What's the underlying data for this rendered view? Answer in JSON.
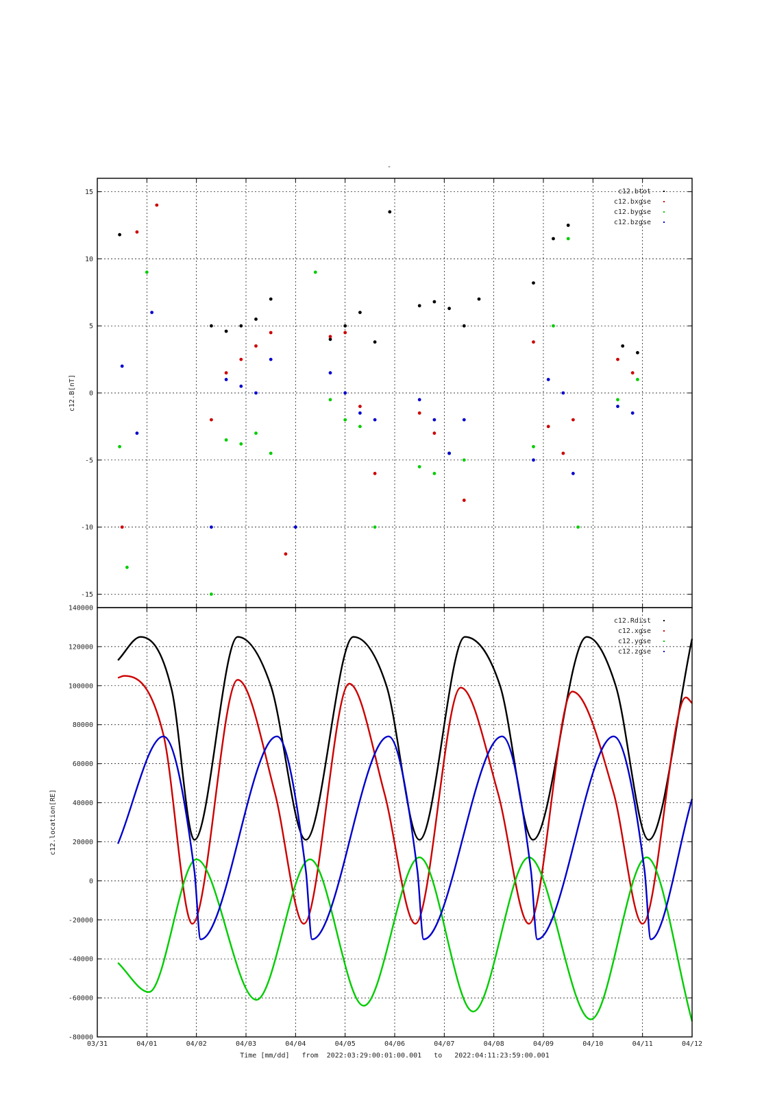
{
  "figure_title": "-",
  "footer": {
    "time_label": "Time [mm/dd]",
    "from_label": "from",
    "from_value": "2022:03:29:00:01:00.001",
    "to_label": "to",
    "to_value": "2022:04:11:23:59:00.001"
  },
  "chart_data": [
    {
      "type": "scatter",
      "ylabel": "c12.B[nT]",
      "xlabel": "",
      "ylim": [
        -16,
        16
      ],
      "yticks": [
        15,
        10,
        5,
        0,
        -5,
        -10,
        -15
      ],
      "x_tick_labels": [],
      "grid": true,
      "legend_position": "top-right",
      "series": [
        {
          "name": "c12.btot",
          "color": "#000000",
          "points": [
            [
              0.45,
              11.8
            ],
            [
              2.3,
              5.0
            ],
            [
              2.6,
              4.6
            ],
            [
              2.9,
              5.0
            ],
            [
              3.2,
              5.5
            ],
            [
              3.5,
              7.0
            ],
            [
              4.7,
              4.0
            ],
            [
              5.0,
              5.0
            ],
            [
              5.3,
              6.0
            ],
            [
              5.6,
              3.8
            ],
            [
              5.9,
              13.5
            ],
            [
              6.5,
              6.5
            ],
            [
              6.8,
              6.8
            ],
            [
              7.1,
              6.3
            ],
            [
              7.4,
              5.0
            ],
            [
              7.7,
              7.0
            ],
            [
              8.8,
              8.2
            ],
            [
              9.2,
              11.5
            ],
            [
              9.5,
              12.5
            ],
            [
              10.6,
              3.5
            ],
            [
              10.9,
              3.0
            ]
          ]
        },
        {
          "name": "c12.bxgse",
          "color": "#cc0000",
          "points": [
            [
              0.5,
              -10.0
            ],
            [
              0.8,
              12.0
            ],
            [
              1.2,
              14.0
            ],
            [
              2.3,
              -2.0
            ],
            [
              2.6,
              1.5
            ],
            [
              2.9,
              2.5
            ],
            [
              3.2,
              3.5
            ],
            [
              3.5,
              4.5
            ],
            [
              3.8,
              -12.0
            ],
            [
              4.7,
              4.2
            ],
            [
              5.0,
              4.5
            ],
            [
              5.3,
              -1.0
            ],
            [
              5.6,
              -6.0
            ],
            [
              6.5,
              -1.5
            ],
            [
              6.8,
              -3.0
            ],
            [
              7.1,
              -4.5
            ],
            [
              7.4,
              -8.0
            ],
            [
              8.8,
              3.8
            ],
            [
              9.1,
              -2.5
            ],
            [
              9.4,
              -4.5
            ],
            [
              9.6,
              -2.0
            ],
            [
              10.5,
              2.5
            ],
            [
              10.8,
              1.5
            ]
          ]
        },
        {
          "name": "c12.bygse",
          "color": "#00cc00",
          "points": [
            [
              0.45,
              -4.0
            ],
            [
              0.6,
              -13.0
            ],
            [
              1.0,
              9.0
            ],
            [
              2.3,
              -15.0
            ],
            [
              2.6,
              -3.5
            ],
            [
              2.9,
              -3.8
            ],
            [
              3.2,
              -3.0
            ],
            [
              3.5,
              -4.5
            ],
            [
              4.4,
              9.0
            ],
            [
              4.7,
              -0.5
            ],
            [
              5.0,
              -2.0
            ],
            [
              5.3,
              -2.5
            ],
            [
              5.6,
              -10.0
            ],
            [
              6.5,
              -5.5
            ],
            [
              6.8,
              -6.0
            ],
            [
              7.1,
              -4.5
            ],
            [
              7.4,
              -5.0
            ],
            [
              8.8,
              -4.0
            ],
            [
              9.2,
              5.0
            ],
            [
              9.5,
              11.5
            ],
            [
              9.7,
              -10.0
            ],
            [
              10.5,
              -0.5
            ],
            [
              10.9,
              1.0
            ]
          ]
        },
        {
          "name": "c12.bzgse",
          "color": "#0000cc",
          "points": [
            [
              0.5,
              2.0
            ],
            [
              0.8,
              -3.0
            ],
            [
              1.1,
              6.0
            ],
            [
              2.3,
              -10.0
            ],
            [
              2.6,
              1.0
            ],
            [
              2.9,
              0.5
            ],
            [
              3.2,
              0.0
            ],
            [
              3.5,
              2.5
            ],
            [
              4.0,
              -10.0
            ],
            [
              4.7,
              1.5
            ],
            [
              5.0,
              0.0
            ],
            [
              5.3,
              -1.5
            ],
            [
              5.6,
              -2.0
            ],
            [
              6.5,
              -0.5
            ],
            [
              6.8,
              -2.0
            ],
            [
              7.1,
              -4.5
            ],
            [
              7.4,
              -2.0
            ],
            [
              8.8,
              -5.0
            ],
            [
              9.1,
              1.0
            ],
            [
              9.4,
              0.0
            ],
            [
              9.6,
              -6.0
            ],
            [
              10.5,
              -1.0
            ],
            [
              10.8,
              -1.5
            ]
          ]
        }
      ]
    },
    {
      "type": "line",
      "ylabel": "c12.location[RE]",
      "xlabel": "Time [mm/dd]",
      "xlim": [
        "03/31",
        "04/12"
      ],
      "ylim": [
        -80000,
        140000
      ],
      "yticks": [
        140000,
        120000,
        100000,
        80000,
        60000,
        40000,
        20000,
        0,
        -20000,
        -40000,
        -60000,
        -80000
      ],
      "x_tick_labels": [
        "03/31",
        "04/01",
        "04/02",
        "04/03",
        "04/04",
        "04/05",
        "04/06",
        "04/07",
        "04/08",
        "04/09",
        "04/10",
        "04/11",
        "04/12"
      ],
      "grid": true,
      "legend_position": "top-right",
      "series": [
        {
          "name": "c12.Rdist",
          "color": "#000000",
          "x": [
            "03/31 10:00",
            "03/31 21:00",
            "04/01 12:00",
            "04/01 23:00",
            "04/02 20:00",
            "04/03 12:00",
            "04/04 05:00",
            "04/05 04:00",
            "04/05 20:00",
            "04/06 12:00",
            "04/07 10:00",
            "04/08 03:00",
            "04/08 19:00",
            "04/09 21:00",
            "04/10 11:00",
            "04/11 03:00",
            "04/12 00:00"
          ],
          "y": [
            113000,
            125000,
            98000,
            21000,
            125000,
            100000,
            21000,
            125000,
            100000,
            21000,
            125000,
            100000,
            21000,
            125000,
            100000,
            21000,
            124000
          ]
        },
        {
          "name": "c12.xgse",
          "color": "#cc0000",
          "x": [
            "03/31 10:00",
            "03/31 13:00",
            "04/01 08:00",
            "04/01 22:00",
            "04/02 20:00",
            "04/03 14:00",
            "04/04 04:00",
            "04/05 02:00",
            "04/05 19:00",
            "04/06 10:00",
            "04/07 08:00",
            "04/08 02:00",
            "04/08 17:00",
            "04/09 14:00",
            "04/10 10:00",
            "04/11 00:00",
            "04/11 21:00",
            "04/12 00:00"
          ],
          "y": [
            104000,
            105000,
            75000,
            -22000,
            103000,
            45000,
            -22000,
            101000,
            45000,
            -22000,
            99000,
            45000,
            -22000,
            97000,
            45000,
            -22000,
            94000,
            91000
          ]
        },
        {
          "name": "c12.ygse",
          "color": "#00cc00",
          "x": [
            "03/31 10:00",
            "04/01 01:00",
            "04/02 00:00",
            "04/03 05:00",
            "04/04 07:00",
            "04/05 09:00",
            "04/06 12:00",
            "04/07 14:00",
            "04/08 17:00",
            "04/09 23:00",
            "04/11 02:00",
            "04/12 00:00"
          ],
          "y": [
            -42000,
            -57000,
            11000,
            -61000,
            11000,
            -64000,
            12000,
            -67000,
            12000,
            -71000,
            12000,
            -72000
          ]
        },
        {
          "name": "c12.zgse",
          "color": "#0000cc",
          "x": [
            "03/31 10:00",
            "04/01 08:00",
            "04/01 23:00",
            "04/02 02:00",
            "04/03 15:00",
            "04/04 05:00",
            "04/04 08:00",
            "04/05 21:00",
            "04/06 11:00",
            "04/06 14:00",
            "04/08 04:00",
            "04/08 18:00",
            "04/08 21:00",
            "04/10 10:00",
            "04/11 01:00",
            "04/11 04:00",
            "04/12 00:00"
          ],
          "y": [
            19000,
            74000,
            5000,
            -30000,
            74000,
            5000,
            -30000,
            74000,
            5000,
            -30000,
            74000,
            5000,
            -30000,
            74000,
            5000,
            -30000,
            42000
          ]
        }
      ]
    }
  ]
}
